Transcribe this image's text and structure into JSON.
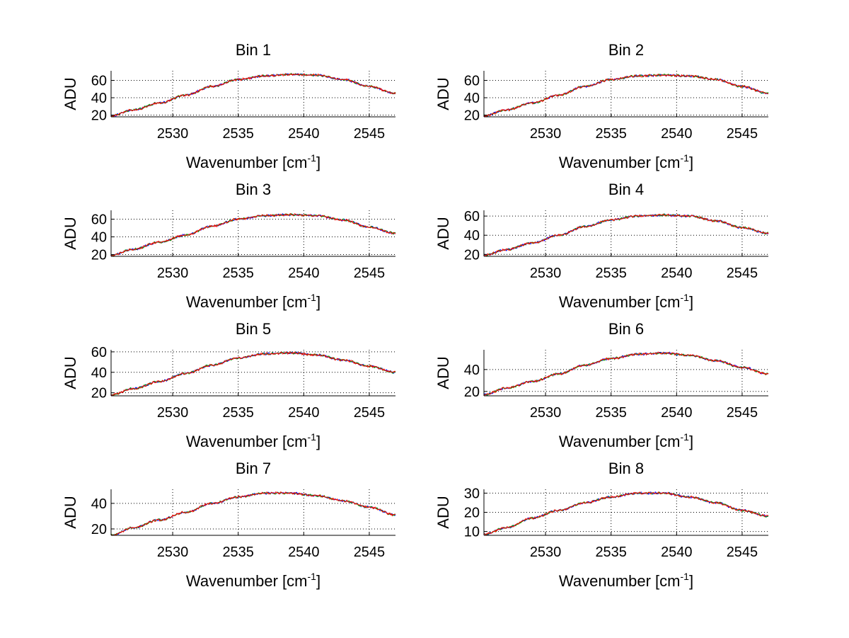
{
  "figure": {
    "background": "#ffffff",
    "series_colors": [
      "#0000ff",
      "#00a000",
      "#ff0000"
    ]
  },
  "chart_data": [
    {
      "type": "line",
      "title": "Bin 1",
      "xlabel": "Wavenumber [cm",
      "xlabel_sup": "-1",
      "xlabel_end": "]",
      "ylabel": "ADU",
      "xlim": [
        2525.3,
        2547
      ],
      "ylim": [
        18,
        71
      ],
      "xticks": [
        2530,
        2535,
        2540,
        2545
      ],
      "yticks": [
        20,
        40,
        60
      ],
      "x": [
        2525.3,
        2527,
        2529,
        2531,
        2533,
        2535,
        2537,
        2539,
        2541,
        2543,
        2545,
        2547
      ],
      "y": [
        19,
        26,
        34,
        43,
        53,
        61,
        65,
        67,
        66,
        61,
        53,
        45
      ],
      "grid": true
    },
    {
      "type": "line",
      "title": "Bin 2",
      "xlabel": "Wavenumber [cm",
      "xlabel_sup": "-1",
      "xlabel_end": "]",
      "ylabel": "ADU",
      "xlim": [
        2525.3,
        2547
      ],
      "ylim": [
        18,
        71
      ],
      "xticks": [
        2530,
        2535,
        2540,
        2545
      ],
      "yticks": [
        20,
        40,
        60
      ],
      "x": [
        2525.3,
        2527,
        2529,
        2531,
        2533,
        2535,
        2537,
        2539,
        2541,
        2543,
        2545,
        2547
      ],
      "y": [
        19,
        26,
        34,
        43,
        53,
        61,
        65,
        66,
        65,
        61,
        53,
        45
      ],
      "grid": true
    },
    {
      "type": "line",
      "title": "Bin 3",
      "xlabel": "Wavenumber [cm",
      "xlabel_sup": "-1",
      "xlabel_end": "]",
      "ylabel": "ADU",
      "xlim": [
        2525.3,
        2547
      ],
      "ylim": [
        18,
        70
      ],
      "xticks": [
        2530,
        2535,
        2540,
        2545
      ],
      "yticks": [
        20,
        40,
        60
      ],
      "x": [
        2525.3,
        2527,
        2529,
        2531,
        2533,
        2535,
        2537,
        2539,
        2541,
        2543,
        2545,
        2547
      ],
      "y": [
        19,
        26,
        34,
        42,
        52,
        60,
        64,
        65,
        64,
        59,
        51,
        44
      ],
      "grid": true
    },
    {
      "type": "line",
      "title": "Bin 4",
      "xlabel": "Wavenumber [cm",
      "xlabel_sup": "-1",
      "xlabel_end": "]",
      "ylabel": "ADU",
      "xlim": [
        2525.3,
        2547
      ],
      "ylim": [
        18,
        66
      ],
      "xticks": [
        2530,
        2535,
        2540,
        2545
      ],
      "yticks": [
        20,
        40,
        60
      ],
      "x": [
        2525.3,
        2527,
        2529,
        2531,
        2533,
        2535,
        2537,
        2539,
        2541,
        2543,
        2545,
        2547
      ],
      "y": [
        19,
        25,
        32,
        40,
        49,
        56,
        60,
        61,
        60,
        55,
        48,
        42
      ],
      "grid": true
    },
    {
      "type": "line",
      "title": "Bin 5",
      "xlabel": "Wavenumber [cm",
      "xlabel_sup": "-1",
      "xlabel_end": "]",
      "ylabel": "ADU",
      "xlim": [
        2525.3,
        2547
      ],
      "ylim": [
        17,
        62
      ],
      "xticks": [
        2530,
        2535,
        2540,
        2545
      ],
      "yticks": [
        20,
        40,
        60
      ],
      "x": [
        2525.3,
        2527,
        2529,
        2531,
        2533,
        2535,
        2537,
        2539,
        2541,
        2543,
        2545,
        2547
      ],
      "y": [
        18,
        24,
        31,
        39,
        47,
        54,
        58,
        59,
        57,
        52,
        46,
        40
      ],
      "grid": true
    },
    {
      "type": "line",
      "title": "Bin 6",
      "xlabel": "Wavenumber [cm",
      "xlabel_sup": "-1",
      "xlabel_end": "]",
      "ylabel": "ADU",
      "xlim": [
        2525.3,
        2547
      ],
      "ylim": [
        16,
        58
      ],
      "xticks": [
        2530,
        2535,
        2540,
        2545
      ],
      "yticks": [
        20,
        40
      ],
      "x": [
        2525.3,
        2527,
        2529,
        2531,
        2533,
        2535,
        2537,
        2539,
        2541,
        2543,
        2545,
        2547
      ],
      "y": [
        17,
        23,
        29,
        36,
        44,
        50,
        54,
        55,
        53,
        48,
        42,
        36
      ],
      "grid": true
    },
    {
      "type": "line",
      "title": "Bin 7",
      "xlabel": "Wavenumber [cm",
      "xlabel_sup": "-1",
      "xlabel_end": "]",
      "ylabel": "ADU",
      "xlim": [
        2525.3,
        2547
      ],
      "ylim": [
        15,
        51
      ],
      "xticks": [
        2530,
        2535,
        2540,
        2545
      ],
      "yticks": [
        20,
        40
      ],
      "x": [
        2525.3,
        2527,
        2529,
        2531,
        2533,
        2535,
        2537,
        2539,
        2541,
        2543,
        2545,
        2547
      ],
      "y": [
        15,
        21,
        27,
        33,
        40,
        45,
        48,
        48,
        46,
        42,
        37,
        31
      ],
      "grid": true
    },
    {
      "type": "line",
      "title": "Bin 8",
      "xlabel": "Wavenumber [cm",
      "xlabel_sup": "-1",
      "xlabel_end": "]",
      "ylabel": "ADU",
      "xlim": [
        2525.3,
        2547
      ],
      "ylim": [
        8,
        32
      ],
      "xticks": [
        2530,
        2535,
        2540,
        2545
      ],
      "yticks": [
        10,
        20,
        30
      ],
      "x": [
        2525.3,
        2527,
        2529,
        2531,
        2533,
        2535,
        2537,
        2539,
        2541,
        2543,
        2545,
        2547
      ],
      "y": [
        8.5,
        12,
        17,
        21,
        25,
        28,
        30,
        30,
        28,
        25,
        21,
        18
      ],
      "grid": true
    }
  ]
}
